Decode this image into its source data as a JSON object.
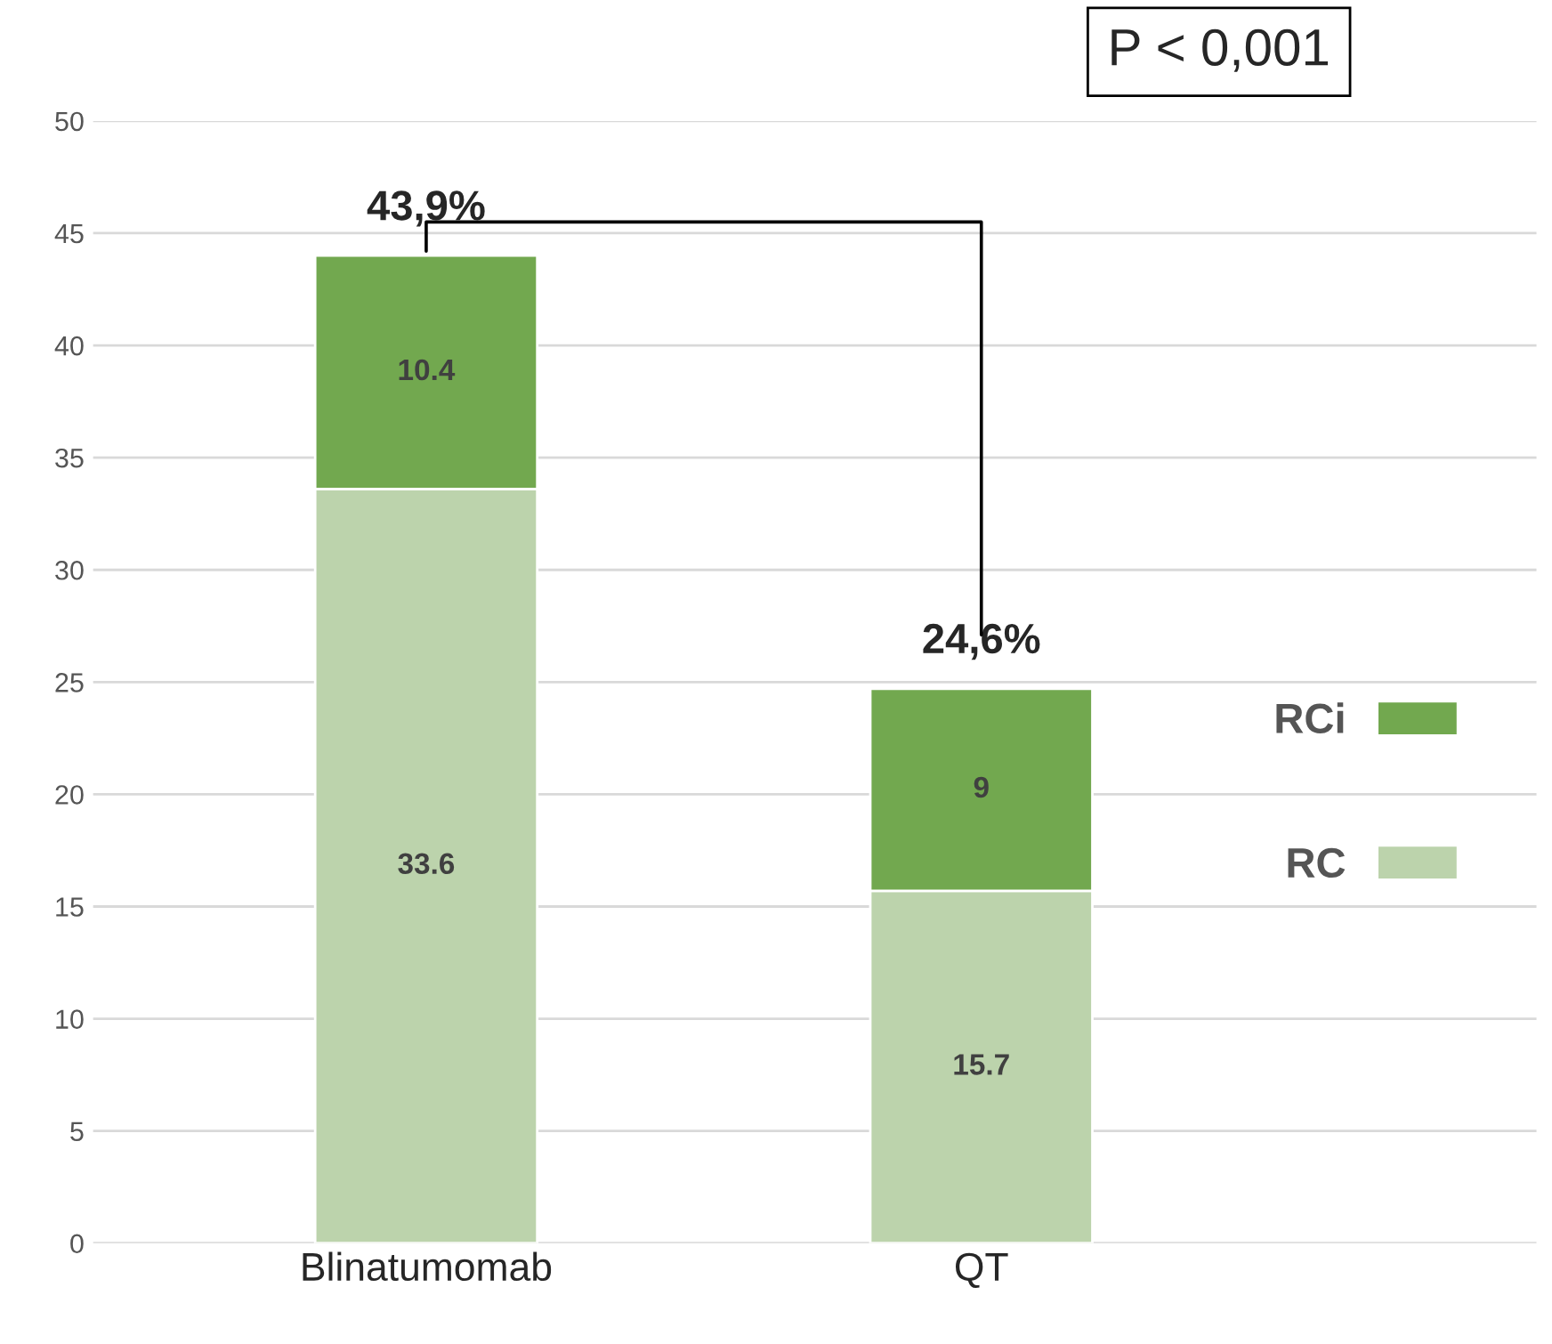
{
  "chart_data": {
    "type": "bar",
    "stacked": true,
    "categories": [
      "Blinatumomab",
      "QT"
    ],
    "series": [
      {
        "name": "RC",
        "color": "#bcd3ac",
        "values": [
          33.6,
          15.7
        ]
      },
      {
        "name": "RCi",
        "color": "#72a84f",
        "values": [
          10.4,
          9
        ]
      }
    ],
    "data_labels": true,
    "totals": [
      "43,9%",
      "24,6%"
    ],
    "annotations": [
      "P < 0,001"
    ],
    "ylim": [
      0,
      50
    ],
    "yticks": [
      0,
      5,
      10,
      15,
      20,
      25,
      30,
      35,
      40,
      45,
      50
    ],
    "grid": "y",
    "legend": "right"
  }
}
